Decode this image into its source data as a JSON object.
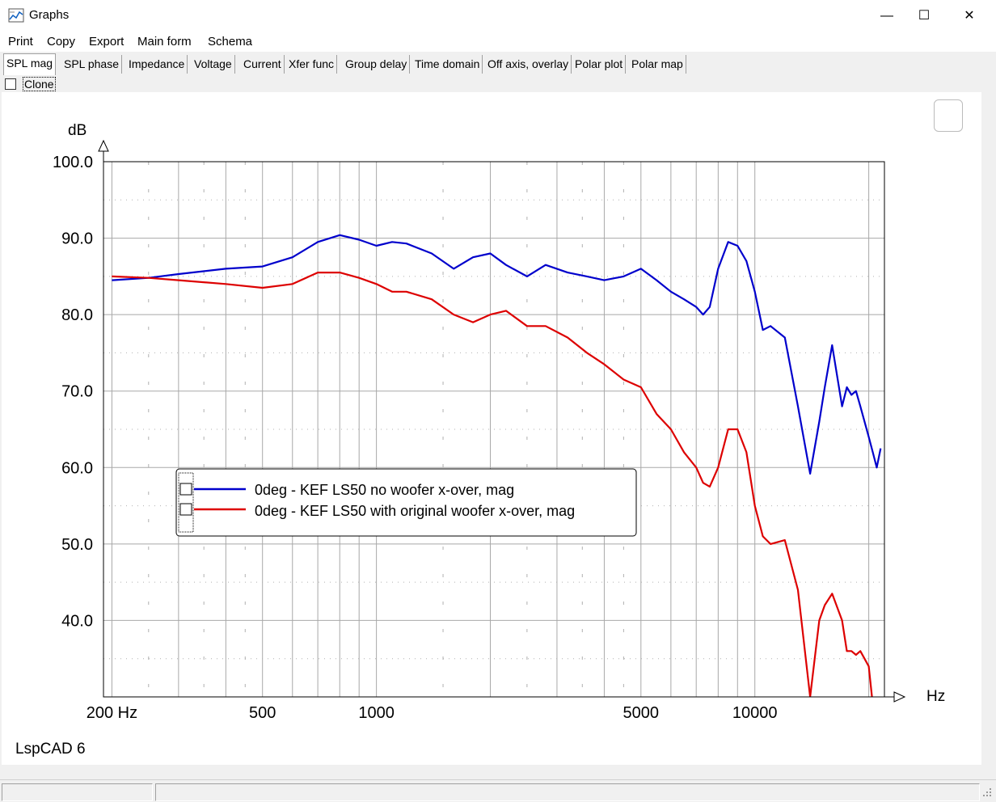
{
  "window": {
    "title": "Graphs",
    "minimize": "—",
    "maximize": "☐",
    "close": "✕"
  },
  "menu": [
    "Print",
    "Copy",
    "Export",
    "Main form",
    "Schema"
  ],
  "tabs": [
    "SPL mag",
    "SPL phase",
    "Impedance",
    "Voltage",
    "Current",
    "Xfer func",
    "Group delay",
    "Time domain",
    "Off axis, overlay",
    "Polar plot",
    "Polar map"
  ],
  "active_tab": "SPL mag",
  "clone": {
    "label": "Clone",
    "checked": false
  },
  "footer_text": "LspCAD 6",
  "chart_data": {
    "type": "line",
    "xlabel": "Hz",
    "ylabel": "dB",
    "x_scale": "log",
    "xlim": [
      190,
      22000
    ],
    "ylim": [
      30,
      100
    ],
    "x_ticks": [
      200,
      500,
      1000,
      5000,
      10000
    ],
    "x_tick_labels": [
      "200 Hz",
      "500",
      "1000",
      "5000",
      "10000"
    ],
    "y_ticks": [
      100,
      90,
      80,
      70,
      60,
      50,
      40
    ],
    "y_tick_labels": [
      "100.0",
      "90.0",
      "80.0",
      "70.0",
      "60.0",
      "50.0",
      "40.0"
    ],
    "grid": true,
    "legend_position": "center-left",
    "series": [
      {
        "name": "0deg - KEF LS50 no woofer x-over, mag",
        "color": "#0000cc",
        "x": [
          200,
          250,
          300,
          400,
          500,
          600,
          700,
          800,
          900,
          1000,
          1100,
          1200,
          1400,
          1600,
          1800,
          2000,
          2200,
          2500,
          2800,
          3200,
          3600,
          4000,
          4500,
          5000,
          5500,
          6000,
          6500,
          7000,
          7300,
          7600,
          8000,
          8500,
          9000,
          9500,
          10000,
          10500,
          11000,
          12000,
          13000,
          14000,
          14800,
          15300,
          16000,
          17000,
          17500,
          18000,
          18500,
          19000,
          20000,
          20500,
          21000,
          21500
        ],
        "y": [
          84.5,
          84.8,
          85.3,
          86.0,
          86.3,
          87.5,
          89.5,
          90.4,
          89.8,
          89.0,
          89.5,
          89.3,
          88.0,
          86.0,
          87.5,
          88.0,
          86.5,
          85.0,
          86.5,
          85.5,
          85.0,
          84.5,
          85.0,
          86.0,
          84.5,
          83.0,
          82.0,
          81.0,
          80.0,
          81.0,
          86.0,
          89.5,
          89.0,
          87.0,
          83.0,
          78.0,
          78.5,
          77.0,
          68.0,
          59.2,
          66.0,
          70.5,
          76.0,
          68.0,
          70.5,
          69.5,
          70.0,
          68.0,
          64.0,
          62.0,
          60.0,
          62.5
        ]
      },
      {
        "name": "0deg - KEF LS50 with original woofer x-over, mag",
        "color": "#dd0000",
        "x": [
          200,
          250,
          300,
          400,
          500,
          600,
          700,
          800,
          900,
          1000,
          1100,
          1200,
          1400,
          1600,
          1800,
          2000,
          2200,
          2500,
          2800,
          3200,
          3600,
          4000,
          4500,
          5000,
          5500,
          6000,
          6500,
          7000,
          7300,
          7600,
          8000,
          8500,
          9000,
          9500,
          10000,
          10500,
          11000,
          12000,
          13000,
          14000,
          14800,
          15300,
          16000,
          17000,
          17500,
          18000,
          18500,
          19000,
          20000,
          20500,
          21000,
          21500
        ],
        "y": [
          85.0,
          84.8,
          84.5,
          84.0,
          83.5,
          84.0,
          85.5,
          85.5,
          84.8,
          84.0,
          83.0,
          83.0,
          82.0,
          80.0,
          79.0,
          80.0,
          80.5,
          78.5,
          78.5,
          77.0,
          75.0,
          73.5,
          71.5,
          70.5,
          67.0,
          65.0,
          62.0,
          60.0,
          58.0,
          57.5,
          60.0,
          65.0,
          65.0,
          62.0,
          55.0,
          51.0,
          50.0,
          50.5,
          44.0,
          30.0,
          40.0,
          42.0,
          43.5,
          40.0,
          36.0,
          36.0,
          35.5,
          36.0,
          34.0,
          29.0,
          29.2,
          29.0
        ]
      }
    ]
  }
}
